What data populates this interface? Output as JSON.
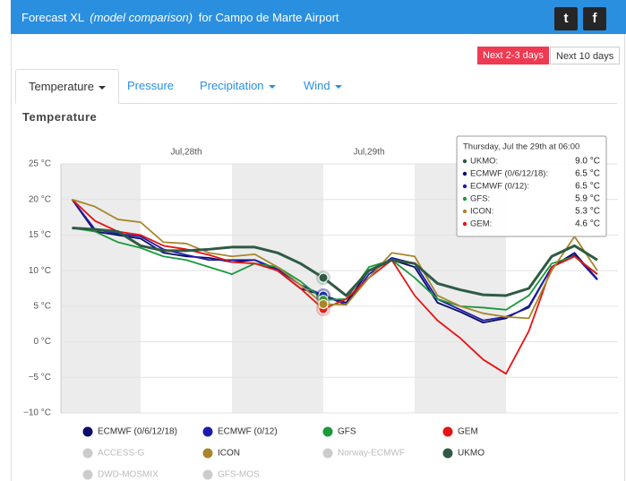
{
  "header": {
    "title": "Forecast XL",
    "subtitle": "(model comparison)",
    "location": "for Campo de Marte Airport",
    "twitter": "t",
    "facebook": "f"
  },
  "buttons": [
    "Next 2-3 days",
    "Next 10 days"
  ],
  "tabs": [
    "Temperature",
    "Pressure",
    "Precipitation",
    "Wind"
  ],
  "section_title": "Temperature",
  "chart_data": {
    "type": "line",
    "categories": [
      null,
      null,
      null,
      null,
      null,
      "Jul,28th",
      null,
      null,
      null,
      null,
      null,
      null,
      null,
      "Jul,29th",
      null,
      null,
      null,
      null,
      null,
      null,
      null,
      null,
      null,
      null
    ],
    "ylim": [
      -10,
      25
    ],
    "yticks": [
      {
        "value": 25,
        "label": "25 °C"
      },
      {
        "value": 20,
        "label": "20 °C"
      },
      {
        "value": 15,
        "label": "15 °C"
      },
      {
        "value": 10,
        "label": "10 °C"
      },
      {
        "value": 5,
        "label": "5 °C"
      },
      {
        "value": 0,
        "label": "0 °C"
      },
      {
        "value": -5,
        "label": "−5 °C"
      },
      {
        "value": -10,
        "label": "−10 °C"
      }
    ],
    "grid": true,
    "series": [
      {
        "name": "ECMWF (0/6/12/18)",
        "color": "#0b0b6b",
        "values": [
          20,
          15.5,
          15,
          14.5,
          12.5,
          12,
          11.8,
          11.2,
          11.5,
          10,
          7.5,
          6.5,
          5.5,
          10,
          11.5,
          10.5,
          5.5,
          4.2,
          2.7,
          3.3,
          5,
          10.5,
          12.5,
          8.8
        ]
      },
      {
        "name": "ECMWF (0/12)",
        "color": "#1c1ca8",
        "values": [
          20,
          15.8,
          15.2,
          14.8,
          13,
          12.2,
          11.5,
          11.5,
          11.5,
          10.2,
          8,
          6.5,
          5.2,
          9.5,
          11.8,
          11,
          6,
          4.5,
          3,
          3.5,
          4.8,
          10.5,
          12.2,
          8.7
        ]
      },
      {
        "name": "GFS",
        "color": "#1a9a3a",
        "values": [
          16,
          15.5,
          14,
          13.2,
          12,
          11.5,
          10.5,
          9.5,
          11,
          10.5,
          8.5,
          5.9,
          6,
          10.5,
          11.5,
          9,
          6,
          5,
          4.8,
          4.5,
          6.5,
          11,
          12,
          9.5
        ]
      },
      {
        "name": "GEM",
        "color": "#e81212",
        "values": [
          20,
          17,
          15.5,
          15,
          13.5,
          13,
          12.2,
          11.2,
          11,
          10,
          7.5,
          4.6,
          6,
          9,
          11.5,
          6.5,
          3,
          0.5,
          -2.5,
          -4.5,
          1.5,
          10.5,
          12,
          9.5
        ]
      },
      {
        "name": "ICON",
        "color": "#a8862a",
        "values": [
          20,
          19,
          17.2,
          16.8,
          14,
          13.8,
          12.5,
          12,
          12.3,
          10.5,
          8,
          5.3,
          5.2,
          9,
          12.5,
          12,
          6.5,
          5,
          4,
          3.5,
          3.3,
          10,
          14.8,
          10
        ]
      },
      {
        "name": "UKMO",
        "color": "#2f5a44",
        "values": [
          16,
          15.8,
          15.5,
          13.5,
          12.8,
          12.8,
          13,
          13.3,
          13.3,
          12.5,
          11,
          9,
          6.5,
          10,
          11.5,
          11,
          8.2,
          7.3,
          6.6,
          6.5,
          7.5,
          12,
          13.5,
          11.5
        ]
      }
    ],
    "inactive_series": [
      "ACCESS-G",
      "Norway-ECMWF",
      "DWD-MOSMIX",
      "GFS-MOS"
    ],
    "inactive_color": "#cccccc",
    "tooltip": {
      "title": "Thursday, Jul the 29th at 06:00",
      "rows": [
        {
          "name": "UKMO:",
          "value": "9.0 °C"
        },
        {
          "name": "ECMWF (0/6/12/18):",
          "value": "6.5 °C"
        },
        {
          "name": "ECMWF (0/12):",
          "value": "6.5 °C"
        },
        {
          "name": "GFS:",
          "value": "5.9 °C"
        },
        {
          "name": "ICON:",
          "value": "5.3 °C"
        },
        {
          "name": "GEM:",
          "value": "4.6 °C"
        }
      ]
    }
  }
}
